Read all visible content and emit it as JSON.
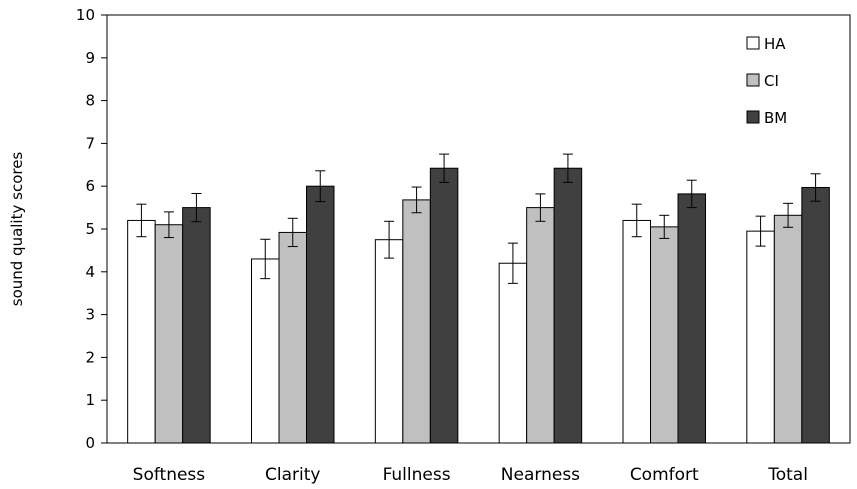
{
  "chart_data": {
    "type": "bar",
    "title": "",
    "xlabel": "",
    "ylabel": "sound quality scores",
    "ylim": [
      0,
      10
    ],
    "yticks": [
      0,
      1,
      2,
      3,
      4,
      5,
      6,
      7,
      8,
      9,
      10
    ],
    "categories": [
      "Softness",
      "Clarity",
      "Fullness",
      "Nearness",
      "Comfort",
      "Total"
    ],
    "series": [
      {
        "name": "HA",
        "color": "#ffffff",
        "values": [
          5.2,
          4.3,
          4.75,
          4.2,
          5.2,
          4.95
        ],
        "error": [
          0.38,
          0.46,
          0.43,
          0.47,
          0.38,
          0.35
        ]
      },
      {
        "name": "CI",
        "color": "#c0c0c0",
        "values": [
          5.1,
          4.92,
          5.68,
          5.5,
          5.05,
          5.32
        ],
        "error": [
          0.3,
          0.33,
          0.3,
          0.32,
          0.27,
          0.28
        ]
      },
      {
        "name": "BM",
        "color": "#404040",
        "values": [
          5.5,
          6.0,
          6.42,
          6.42,
          5.82,
          5.97
        ],
        "error": [
          0.33,
          0.36,
          0.33,
          0.33,
          0.32,
          0.32
        ]
      }
    ],
    "legend_position": "top-right",
    "grid": false
  }
}
